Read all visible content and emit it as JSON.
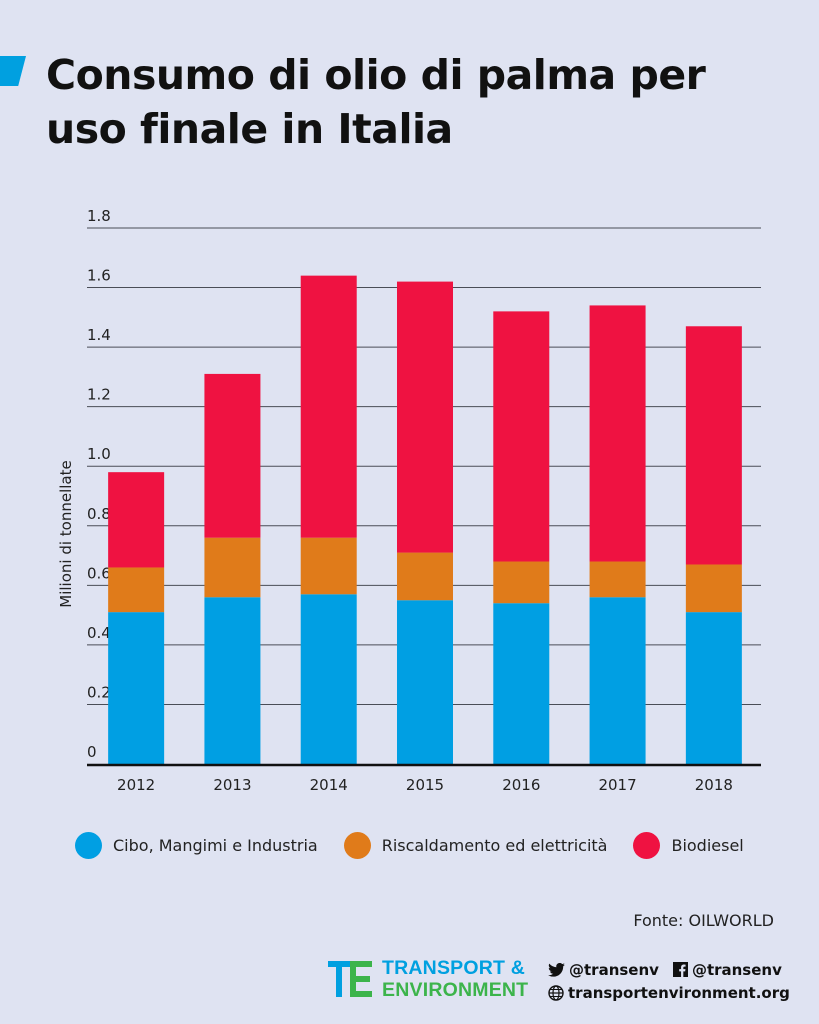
{
  "title": "Consumo di olio di palma per uso finale in Italia",
  "source": "Fonte: OILWORLD",
  "colors": {
    "background": "#dfe3f2",
    "food": "#009fe3",
    "heating": "#e07b1a",
    "biodiesel": "#ef1241",
    "accent": "#00a0e0"
  },
  "chart_data": {
    "type": "bar",
    "stacked": true,
    "categories": [
      "2012",
      "2013",
      "2014",
      "2015",
      "2016",
      "2017",
      "2018"
    ],
    "series": [
      {
        "name": "Cibo, Mangimi e Industria",
        "color": "#009fe3",
        "values": [
          0.51,
          0.56,
          0.57,
          0.55,
          0.54,
          0.56,
          0.51
        ]
      },
      {
        "name": "Riscaldamento ed elettricità",
        "color": "#e07b1a",
        "values": [
          0.15,
          0.2,
          0.19,
          0.16,
          0.14,
          0.12,
          0.16
        ]
      },
      {
        "name": "Biodiesel",
        "color": "#ef1241",
        "values": [
          0.32,
          0.55,
          0.88,
          0.91,
          0.84,
          0.86,
          0.8
        ]
      }
    ],
    "ylabel": "Milioni di tonnellate",
    "xlabel": "",
    "ylim": [
      0,
      1.8
    ],
    "yticks": [
      "0",
      "0.2",
      "0.4",
      "0.6",
      "0.8",
      "1.0",
      "1.2",
      "1.4",
      "1.6",
      "1.8"
    ],
    "grid": true,
    "legend_position": "bottom"
  },
  "footer": {
    "logo_line1": "TRANSPORT &",
    "logo_line2": "ENVIRONMENT",
    "twitter": "@transenv",
    "facebook": "@transenv",
    "website": "transportenvironment.org"
  }
}
